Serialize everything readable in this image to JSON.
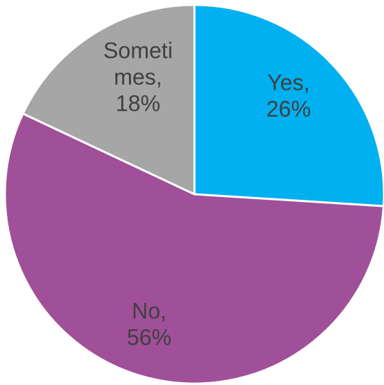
{
  "chart_data": {
    "type": "pie",
    "title": "",
    "start_angle_deg": 0,
    "direction": "clockwise",
    "slices": [
      {
        "label": "Yes",
        "value": 26,
        "percent_label": "26%",
        "color": "#00B0F0",
        "label_lines": [
          "Yes,",
          "26%"
        ]
      },
      {
        "label": "No",
        "value": 56,
        "percent_label": "56%",
        "color": "#A05098",
        "label_lines": [
          "No,",
          "56%"
        ]
      },
      {
        "label": "Sometimes",
        "value": 18,
        "percent_label": "18%",
        "color": "#A6A6A6",
        "label_lines": [
          "Someti",
          "mes,",
          "18%"
        ]
      }
    ]
  }
}
